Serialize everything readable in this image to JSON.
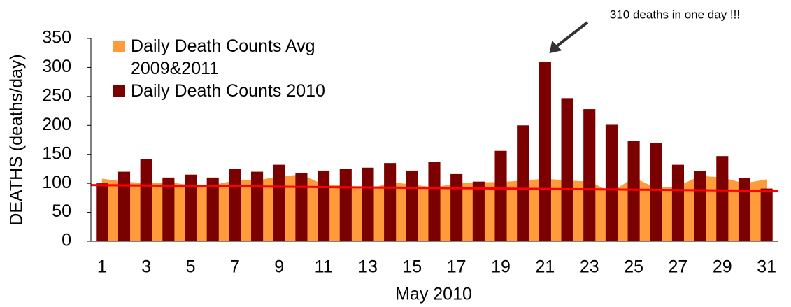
{
  "chart_data": {
    "type": "bar",
    "annotation": "310 deaths in one day !!!",
    "xlabel": "May  2010",
    "ylabel": "DEATHS (deaths/day)",
    "categories": [
      "1",
      null,
      "3",
      null,
      "5",
      null,
      "7",
      null,
      "9",
      null,
      "11",
      null,
      "13",
      null,
      "15",
      null,
      "17",
      null,
      "19",
      null,
      "21",
      null,
      "23",
      null,
      "25",
      null,
      "27",
      null,
      "29",
      null,
      "31"
    ],
    "series": [
      {
        "name": "Daily Death Counts Avg 2009&2011",
        "type": "area",
        "color": "#ff9b3b",
        "values": [
          108,
          103,
          100,
          102,
          97,
          97,
          105,
          105,
          112,
          115,
          98,
          97,
          88,
          102,
          98,
          93,
          100,
          102,
          102,
          105,
          108,
          105,
          103,
          85,
          110,
          92,
          95,
          113,
          110,
          100,
          107
        ]
      },
      {
        "name": "Daily Death Counts 2010",
        "type": "bar",
        "color": "#7b0000",
        "values": [
          100,
          120,
          142,
          110,
          115,
          110,
          125,
          120,
          132,
          118,
          122,
          125,
          127,
          135,
          122,
          137,
          116,
          103,
          156,
          200,
          310,
          247,
          228,
          201,
          173,
          170,
          132,
          121,
          147,
          109,
          91
        ]
      }
    ],
    "trendline": {
      "color": "#ff0000",
      "values": [
        97,
        87
      ]
    },
    "ylim": [
      0,
      350
    ],
    "yticks": [
      0,
      50,
      100,
      150,
      200,
      250,
      300,
      350
    ],
    "grid": false,
    "legend": "upper left"
  }
}
